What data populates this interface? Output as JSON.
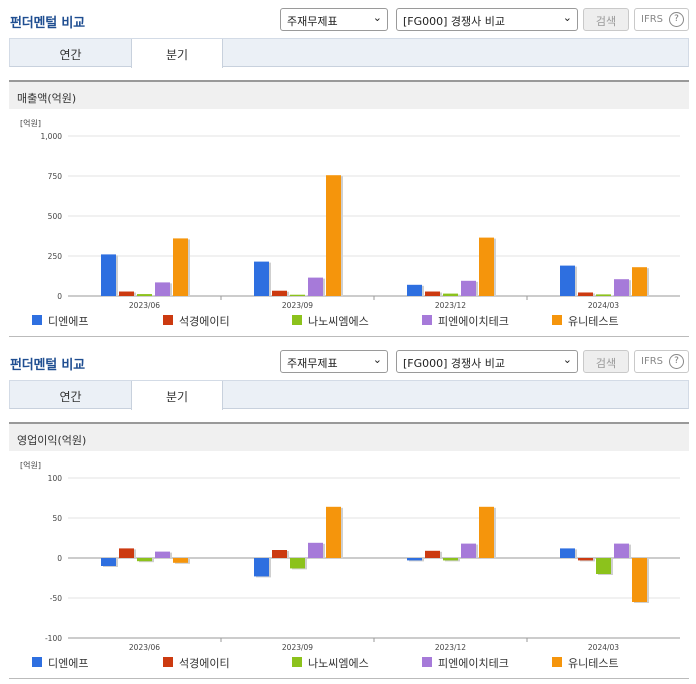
{
  "legend": [
    {
      "name": "디엔에프",
      "color": "#2e6fe0"
    },
    {
      "name": "석경에이티",
      "color": "#cc3a10"
    },
    {
      "name": "나노씨엠에스",
      "color": "#8cc21c"
    },
    {
      "name": "피엔에이치테크",
      "color": "#a67ad9"
    },
    {
      "name": "유니테스트",
      "color": "#f5950c"
    }
  ],
  "panels": [
    {
      "title": "펀더멘털 비교",
      "select_statement": "주재무제표",
      "select_compare": "[FG000] 경쟁사 비교",
      "search_label": "검색",
      "ifrs_label": "IFRS",
      "ifrs_help": "?",
      "tab_annual": "연간",
      "tab_quarter": "분기",
      "section_title": "매출액(억원)",
      "unit": "[억원]"
    },
    {
      "title": "펀더멘털 비교",
      "select_statement": "주재무제표",
      "select_compare": "[FG000] 경쟁사 비교",
      "search_label": "검색",
      "ifrs_label": "IFRS",
      "ifrs_help": "?",
      "tab_annual": "연간",
      "tab_quarter": "분기",
      "section_title": "영업이익(억원)",
      "unit": "[억원]"
    }
  ],
  "chart_data": [
    {
      "type": "bar",
      "title": "매출액(억원)",
      "ylabel": "[억원]",
      "categories": [
        "2023/06",
        "2023/09",
        "2023/12",
        "2024/03"
      ],
      "ylim": [
        0,
        1000
      ],
      "yticks": [
        0,
        250,
        500,
        750,
        1000
      ],
      "ytick_labels": [
        "0",
        "250",
        "500",
        "750",
        "1,000"
      ],
      "series": [
        {
          "name": "디엔에프",
          "values": [
            260,
            215,
            70,
            190
          ]
        },
        {
          "name": "석경에이티",
          "values": [
            28,
            33,
            28,
            22
          ]
        },
        {
          "name": "나노씨엠에스",
          "values": [
            12,
            8,
            15,
            10
          ]
        },
        {
          "name": "피엔에이치테크",
          "values": [
            85,
            115,
            95,
            105
          ]
        },
        {
          "name": "유니테스트",
          "values": [
            360,
            755,
            365,
            180
          ]
        }
      ]
    },
    {
      "type": "bar",
      "title": "영업이익(억원)",
      "ylabel": "[억원]",
      "categories": [
        "2023/06",
        "2023/09",
        "2023/12",
        "2024/03"
      ],
      "ylim": [
        -100,
        100
      ],
      "yticks": [
        -100,
        -50,
        0,
        50,
        100
      ],
      "ytick_labels": [
        "-100",
        "-50",
        "0",
        "50",
        "100"
      ],
      "series": [
        {
          "name": "디엔에프",
          "values": [
            -10,
            -23,
            -3,
            12
          ]
        },
        {
          "name": "석경에이티",
          "values": [
            12,
            10,
            9,
            -3
          ]
        },
        {
          "name": "나노씨엠에스",
          "values": [
            -4,
            -13,
            -3,
            -20
          ]
        },
        {
          "name": "피엔에이치테크",
          "values": [
            8,
            19,
            18,
            18
          ]
        },
        {
          "name": "유니테스트",
          "values": [
            -6,
            64,
            64,
            -55
          ]
        }
      ]
    }
  ]
}
